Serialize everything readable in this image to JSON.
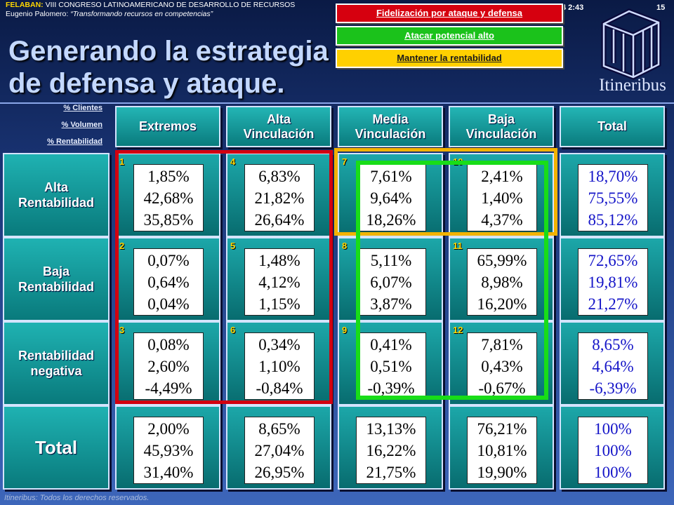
{
  "header": {
    "org": "FELABAN:",
    "event": " VIII CONGRESO LATINOAMERICANO DE DESARROLLO DE RECURSOS",
    "author": "Eugenio Palomero: ",
    "tagline": "“Transformando recursos en competencias”",
    "time": "4 2:43",
    "page_number": "15"
  },
  "title": {
    "line1": "Generando la estrategia",
    "line2": "de defensa y ataque."
  },
  "legend": {
    "red": "Fidelización por ataque y defensa",
    "green": "Atacar potencial alto",
    "yellow": "Mantener la rentabilidad"
  },
  "logo_text": "Itineribus",
  "metrics": [
    "% Clientes",
    "% Volumen",
    "% Rentabilidad"
  ],
  "columns": [
    "Extremos",
    "Alta\nVinculación",
    "Media\nVinculación",
    "Baja\nVinculación",
    "Total"
  ],
  "rows": [
    "Alta\nRentabilidad",
    "Baja\nRentabilidad",
    "Rentabilidad\nnegativa",
    "Total"
  ],
  "cells": [
    [
      {
        "num": "1",
        "values": [
          "1,85%",
          "42,68%",
          "35,85%"
        ]
      },
      {
        "num": "4",
        "values": [
          "6,83%",
          "21,82%",
          "26,64%"
        ]
      },
      {
        "num": "7",
        "values": [
          "7,61%",
          "9,64%",
          "18,26%"
        ]
      },
      {
        "num": "10",
        "values": [
          "2,41%",
          "1,40%",
          "4,37%"
        ]
      },
      {
        "num": "",
        "values": [
          "18,70%",
          "75,55%",
          "85,12%"
        ],
        "color": "#1515c8"
      }
    ],
    [
      {
        "num": "2",
        "values": [
          "0,07%",
          "0,64%",
          "0,04%"
        ]
      },
      {
        "num": "5",
        "values": [
          "1,48%",
          "4,12%",
          "1,15%"
        ]
      },
      {
        "num": "8",
        "values": [
          "5,11%",
          "6,07%",
          "3,87%"
        ]
      },
      {
        "num": "11",
        "values": [
          "65,99%",
          "8,98%",
          "16,20%"
        ]
      },
      {
        "num": "",
        "values": [
          "72,65%",
          "19,81%",
          "21,27%"
        ],
        "color": "#1515c8"
      }
    ],
    [
      {
        "num": "3",
        "values": [
          "0,08%",
          "2,60%",
          "-4,49%"
        ]
      },
      {
        "num": "6",
        "values": [
          "0,34%",
          "1,10%",
          "-0,84%"
        ]
      },
      {
        "num": "9",
        "values": [
          "0,41%",
          "0,51%",
          "-0,39%"
        ]
      },
      {
        "num": "12",
        "values": [
          "7,81%",
          "0,43%",
          "-0,67%"
        ]
      },
      {
        "num": "",
        "values": [
          "8,65%",
          "4,64%",
          "-6,39%"
        ],
        "color": "#1515c8"
      }
    ],
    [
      {
        "num": "",
        "values": [
          "2,00%",
          "45,93%",
          "31,40%"
        ]
      },
      {
        "num": "",
        "values": [
          "8,65%",
          "27,04%",
          "26,95%"
        ]
      },
      {
        "num": "",
        "values": [
          "13,13%",
          "16,22%",
          "21,75%"
        ]
      },
      {
        "num": "",
        "values": [
          "76,21%",
          "10,81%",
          "19,90%"
        ]
      },
      {
        "num": "",
        "values": [
          "100%",
          "100%",
          "100%"
        ],
        "color": "#1515c8"
      }
    ]
  ],
  "footer": "Itineribus: Todos los derechos reservados."
}
